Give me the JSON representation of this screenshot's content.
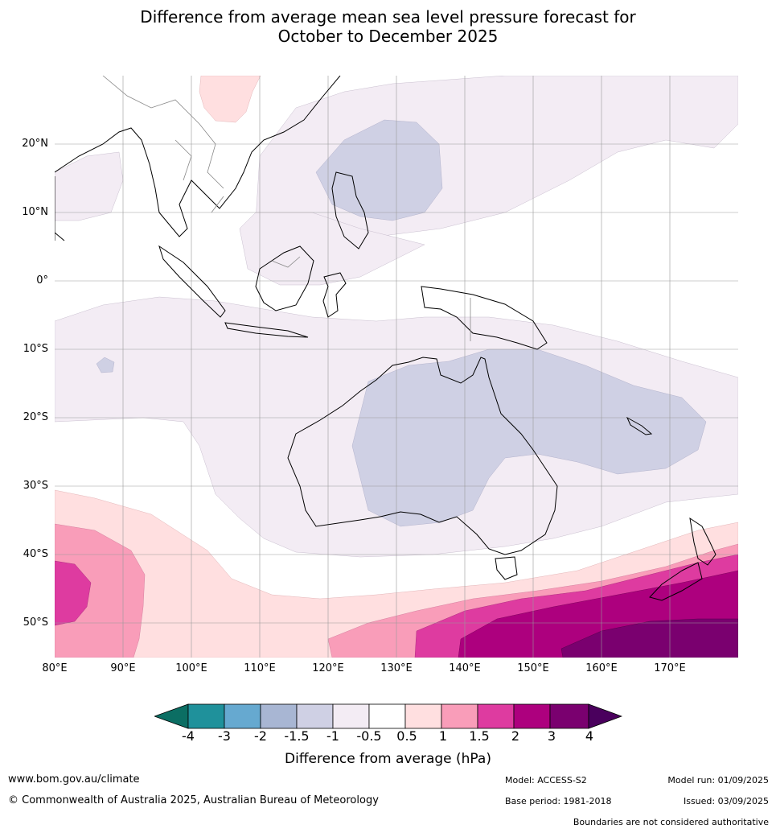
{
  "title_line1": "Difference from average mean sea level pressure forecast for",
  "title_line2": "October to December 2025",
  "map": {
    "lat_labels": [
      "20°N",
      "10°N",
      "0°",
      "10°S",
      "20°S",
      "30°S",
      "40°S",
      "50°S"
    ],
    "lon_labels": [
      "80°E",
      "90°E",
      "100°E",
      "110°E",
      "120°E",
      "130°E",
      "140°E",
      "150°E",
      "160°E",
      "170°E"
    ],
    "lon_range": [
      80,
      180
    ],
    "lat_range": [
      -55,
      30
    ]
  },
  "colorbar": {
    "colors": [
      "#0b6e63",
      "#1f919b",
      "#66a9d0",
      "#a8b6d3",
      "#cfd0e4",
      "#f3ecf4",
      "#ffffff",
      "#ffdfe0",
      "#f99db9",
      "#de3ba0",
      "#ad007e",
      "#7a006f",
      "#4a005d"
    ],
    "tick_labels": [
      "-4",
      "-3",
      "-2",
      "-1.5",
      "-1",
      "-0.5",
      "0.5",
      "1",
      "1.5",
      "2",
      "3",
      "4"
    ],
    "label": "Difference from average (hPa)"
  },
  "footer": {
    "url": "www.bom.gov.au/climate",
    "copyright": "© Commonwealth of Australia 2025, Australian Bureau of Meteorology",
    "model": "Model: ACCESS-S2",
    "base_period": "Base period: 1981-2018",
    "model_run": "Model run: 01/09/2025",
    "issued": "Issued: 03/09/2025",
    "disclaimer": "Boundaries are not considered authoritative"
  }
}
